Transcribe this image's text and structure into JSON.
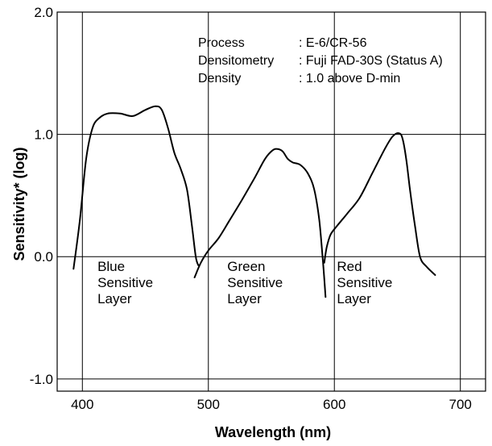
{
  "chart_data": {
    "type": "line",
    "title": "",
    "xlabel": "Wavelength (nm)",
    "ylabel": "Sensitivity* (log)",
    "xlim": [
      380,
      720
    ],
    "ylim": [
      -1.1,
      2.0
    ],
    "x_ticks": [
      400,
      500,
      600,
      700
    ],
    "y_ticks": [
      2.0,
      1.0,
      0.0,
      -1.0
    ],
    "x_tick_labels": [
      "400",
      "500",
      "600",
      "700"
    ],
    "y_tick_labels": [
      "2.0",
      "1.0",
      "0.0",
      "-1.0"
    ],
    "grid": true,
    "info": [
      {
        "key": "Process",
        "value": ": E-6/CR-56"
      },
      {
        "key": "Densitometry",
        "value": ": Fuji FAD-30S (Status A)"
      },
      {
        "key": "Density",
        "value": ": 1.0 above D-min"
      }
    ],
    "series": [
      {
        "label_lines": [
          "Blue",
          "Sensitive",
          "Layer"
        ],
        "x": [
          393,
          398,
          403,
          408,
          413,
          420,
          430,
          440,
          450,
          458,
          463,
          468,
          473,
          478,
          483,
          487,
          490,
          492
        ],
        "y": [
          -0.1,
          0.3,
          0.8,
          1.05,
          1.13,
          1.17,
          1.17,
          1.15,
          1.2,
          1.23,
          1.2,
          1.05,
          0.85,
          0.72,
          0.55,
          0.25,
          0.0,
          -0.07
        ]
      },
      {
        "label_lines": [
          "Green",
          "Sensitive",
          "Layer"
        ],
        "x": [
          489,
          494,
          500,
          508,
          517,
          527,
          537,
          545,
          551,
          555,
          559,
          563,
          567,
          573,
          579,
          584,
          588,
          591,
          593
        ],
        "y": [
          -0.17,
          -0.05,
          0.05,
          0.15,
          0.3,
          0.47,
          0.65,
          0.8,
          0.87,
          0.88,
          0.86,
          0.8,
          0.77,
          0.75,
          0.68,
          0.55,
          0.3,
          -0.05,
          -0.33
        ]
      },
      {
        "label_lines": [
          "Red",
          "Sensitive",
          "Layer"
        ],
        "x": [
          592,
          594,
          597,
          602,
          610,
          620,
          630,
          640,
          646,
          651,
          654,
          657,
          660,
          664,
          668,
          673,
          680
        ],
        "y": [
          -0.05,
          0.08,
          0.18,
          0.25,
          0.35,
          0.48,
          0.68,
          0.88,
          0.98,
          1.01,
          0.97,
          0.8,
          0.55,
          0.25,
          0.0,
          -0.08,
          -0.15
        ]
      }
    ]
  }
}
